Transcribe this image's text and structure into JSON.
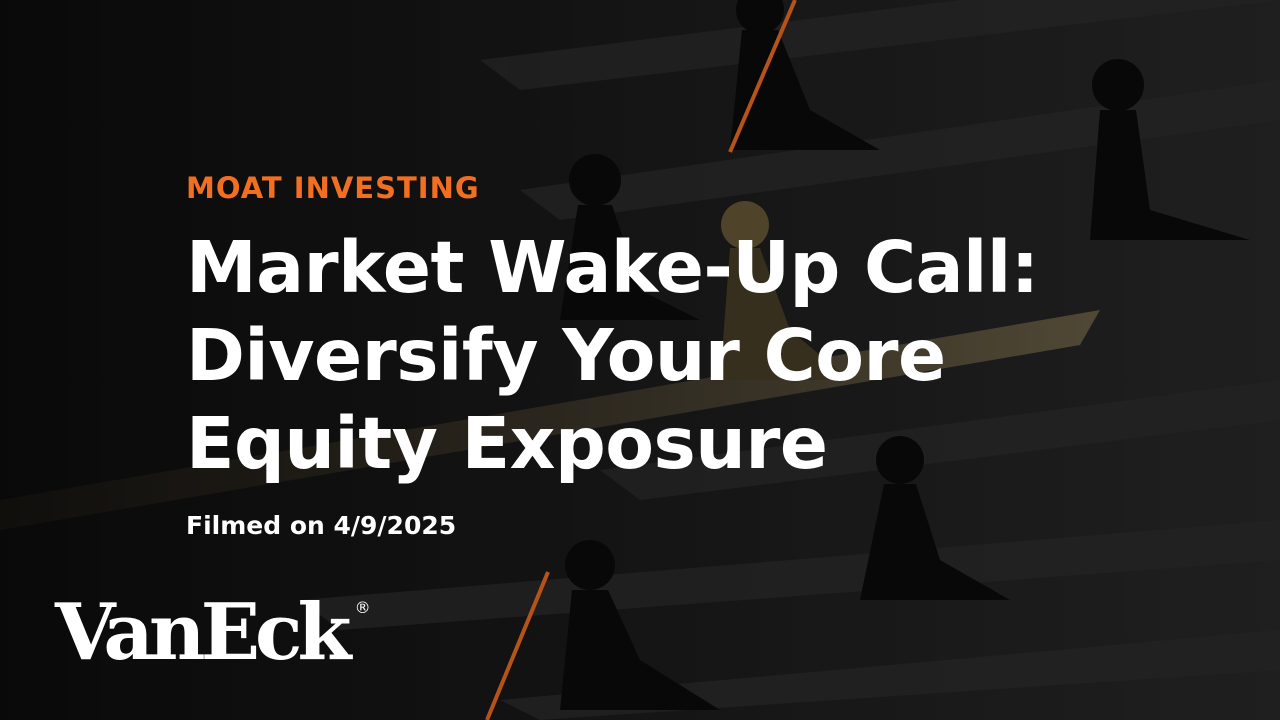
{
  "eyebrow": "MOAT INVESTING",
  "title_lines": [
    "Market Wake-Up Call:",
    "Diversify Your Core",
    "Equity Exposure"
  ],
  "filmed": "Filmed on 4/9/2025",
  "brand": {
    "logo_text": "VanEck",
    "registered_mark": "®"
  },
  "colors": {
    "accent": "#f26f21",
    "background": "#141414",
    "text": "#ffffff"
  }
}
